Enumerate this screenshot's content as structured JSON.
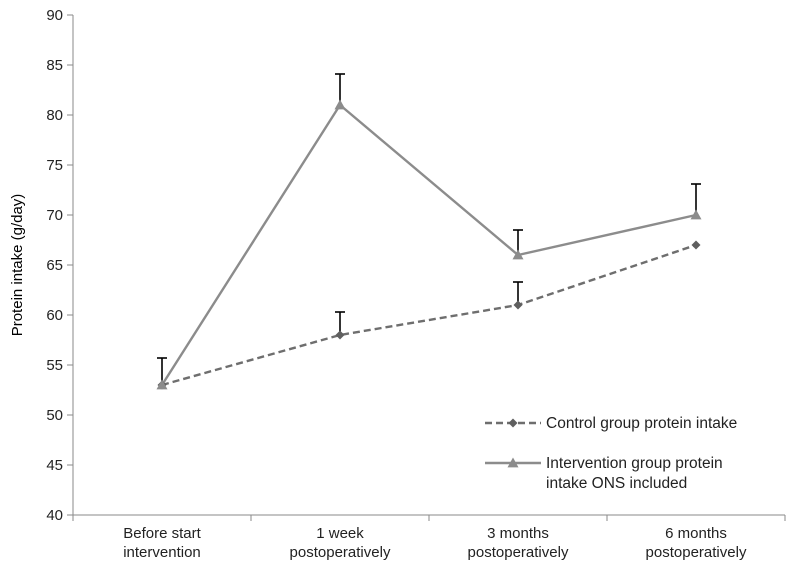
{
  "chart_data": {
    "type": "line",
    "title": "",
    "xlabel": "",
    "ylabel": "Protein intake (g/day)",
    "ylim": [
      40,
      90
    ],
    "yticks": [
      40,
      45,
      50,
      55,
      60,
      65,
      70,
      75,
      80,
      85,
      90
    ],
    "grid": false,
    "legend_position": "bottom-right",
    "categories": [
      [
        "Before start",
        "intervention"
      ],
      [
        "1 week",
        "postoperatively"
      ],
      [
        "3 months",
        "postoperatively"
      ],
      [
        "6 months",
        "postoperatively"
      ]
    ],
    "series": [
      {
        "name": "Control group protein intake",
        "values": [
          53,
          58,
          61,
          67
        ],
        "error_upper": [
          55.7,
          60.3,
          63.3,
          null
        ],
        "color": "#6e6e6e",
        "line_style": "dashed",
        "marker": "diamond"
      },
      {
        "name": "Intervention group protein intake ONS included",
        "legend_lines": [
          "Intervention group protein",
          "intake ONS included"
        ],
        "values": [
          53,
          81,
          66,
          70
        ],
        "error_upper": [
          null,
          84.1,
          68.5,
          73.1
        ],
        "color": "#8c8c8c",
        "line_style": "solid",
        "marker": "triangle"
      }
    ]
  }
}
